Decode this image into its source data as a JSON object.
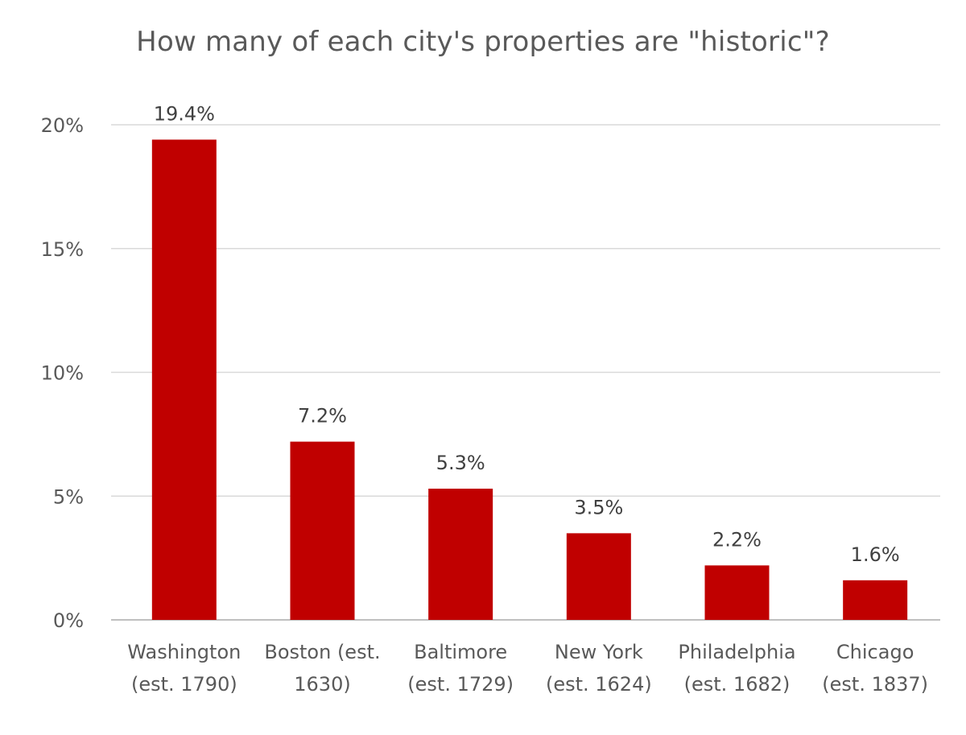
{
  "chart_data": {
    "type": "bar",
    "title": "How many of each city's properties are \"historic\"?",
    "xlabel": "",
    "ylabel": "",
    "categories": [
      [
        "Washington",
        "(est. 1790)"
      ],
      [
        "Boston (est.",
        "1630)"
      ],
      [
        "Baltimore",
        "(est. 1729)"
      ],
      [
        "New York",
        "(est. 1624)"
      ],
      [
        "Philadelphia",
        "(est. 1682)"
      ],
      [
        "Chicago",
        "(est. 1837)"
      ]
    ],
    "values": [
      19.4,
      7.2,
      5.3,
      3.5,
      2.2,
      1.6
    ],
    "data_labels": [
      "19.4%",
      "7.2%",
      "5.3%",
      "3.5%",
      "2.2%",
      "1.6%"
    ],
    "ylim": [
      0,
      20
    ],
    "yticks": [
      0,
      5,
      10,
      15,
      20
    ],
    "ytick_labels": [
      "0%",
      "5%",
      "10%",
      "15%",
      "20%"
    ],
    "grid": true,
    "legend": "none",
    "colors": {
      "bar": "#c00000",
      "grid": "#d9d9d9",
      "text": "#595959"
    }
  }
}
